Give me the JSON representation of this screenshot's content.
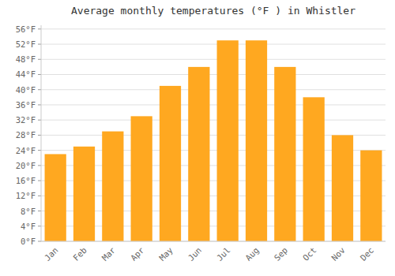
{
  "chart_data": {
    "type": "bar",
    "title": "Average monthly temperatures (°F ) in Whistler",
    "categories": [
      "Jan",
      "Feb",
      "Mar",
      "Apr",
      "May",
      "Jun",
      "Jul",
      "Aug",
      "Sep",
      "Oct",
      "Nov",
      "Dec"
    ],
    "values": [
      23,
      25,
      29,
      33,
      41,
      46,
      53,
      53,
      46,
      38,
      28,
      24
    ],
    "color": "#FFA820",
    "ylim": [
      0,
      57
    ],
    "yticks": [
      {
        "value": 0,
        "label": "0°F"
      },
      {
        "value": 4,
        "label": "4°F"
      },
      {
        "value": 8,
        "label": "8°F"
      },
      {
        "value": 12,
        "label": "12°F"
      },
      {
        "value": 16,
        "label": "16°F"
      },
      {
        "value": 20,
        "label": "20°F"
      },
      {
        "value": 24,
        "label": "24°F"
      },
      {
        "value": 28,
        "label": "28°F"
      },
      {
        "value": 32,
        "label": "32°F"
      },
      {
        "value": 36,
        "label": "36°F"
      },
      {
        "value": 40,
        "label": "40°F"
      },
      {
        "value": 44,
        "label": "44°F"
      },
      {
        "value": 48,
        "label": "48°F"
      },
      {
        "value": 52,
        "label": "52°F"
      },
      {
        "value": 56,
        "label": "56°F"
      }
    ],
    "grid": true
  }
}
